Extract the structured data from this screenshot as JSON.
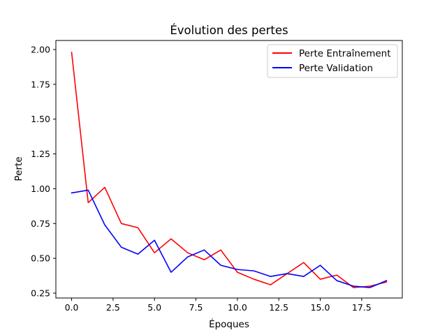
{
  "chart_data": {
    "type": "line",
    "title": "Évolution des pertes",
    "xlabel": "Époques",
    "ylabel": "Perte",
    "xlim": [
      -0.95,
      19.95
    ],
    "ylim": [
      0.215,
      2.065
    ],
    "xticks": [
      0,
      2.5,
      5,
      7.5,
      10,
      12.5,
      15,
      17.5
    ],
    "xtick_labels": [
      "0.0",
      "2.5",
      "5.0",
      "7.5",
      "10.0",
      "12.5",
      "15.0",
      "17.5"
    ],
    "yticks": [
      0.25,
      0.5,
      0.75,
      1.0,
      1.25,
      1.5,
      1.75,
      2.0
    ],
    "ytick_labels": [
      "0.25",
      "0.50",
      "0.75",
      "1.00",
      "1.25",
      "1.50",
      "1.75",
      "2.00"
    ],
    "grid": false,
    "legend_position": "top-right",
    "x": [
      0,
      1,
      2,
      3,
      4,
      5,
      6,
      7,
      8,
      9,
      10,
      11,
      12,
      13,
      14,
      15,
      16,
      17,
      18,
      19
    ],
    "series": [
      {
        "name": "Perte Entraînement",
        "color": "#ff0000",
        "values": [
          1.98,
          0.9,
          1.01,
          0.75,
          0.72,
          0.54,
          0.64,
          0.54,
          0.49,
          0.56,
          0.4,
          0.35,
          0.31,
          0.39,
          0.47,
          0.35,
          0.38,
          0.29,
          0.3,
          0.33
        ]
      },
      {
        "name": "Perte Validation",
        "color": "#0000ff",
        "values": [
          0.97,
          0.99,
          0.74,
          0.58,
          0.53,
          0.63,
          0.4,
          0.51,
          0.56,
          0.45,
          0.42,
          0.41,
          0.37,
          0.39,
          0.37,
          0.45,
          0.34,
          0.3,
          0.29,
          0.34
        ]
      }
    ]
  }
}
